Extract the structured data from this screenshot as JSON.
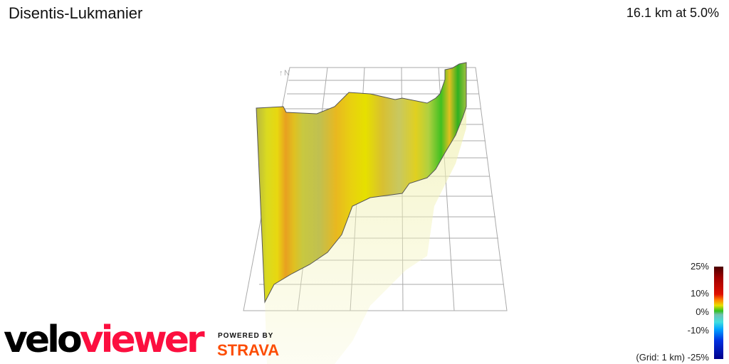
{
  "header": {
    "title": "Disentis-Lukmanier",
    "stats": "16.1 km at 5.0%"
  },
  "compass": {
    "label": "N",
    "icon": "north-arrow-icon"
  },
  "legend": {
    "labels": [
      "25%",
      "10%",
      "0%",
      "-10%",
      "-25%"
    ],
    "grid_note": "(Grid: 1 km)",
    "colors": [
      "#4a0000",
      "#e01000",
      "#ff8000",
      "#e8e000",
      "#30c020",
      "#40e0e0",
      "#00a0ff",
      "#00008a"
    ]
  },
  "branding": {
    "logo_part1": "velo",
    "logo_part2": "viewer",
    "powered_by": "POWERED BY",
    "strava": "STRAVA",
    "velo_color": "#000000",
    "viewer_color": "#fc0f3f",
    "strava_color": "#fc4c02"
  }
}
